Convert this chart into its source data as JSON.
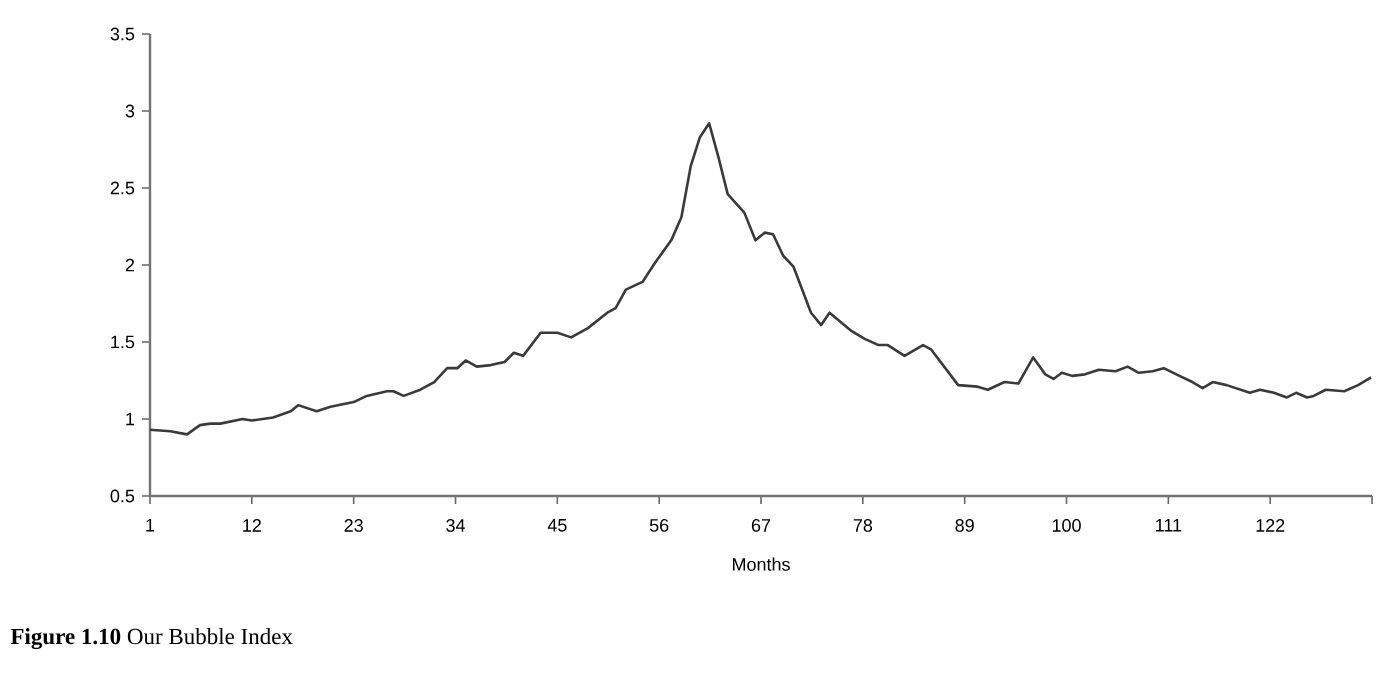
{
  "chart_data": {
    "type": "line",
    "title": "**Figure 1.10** Our Bubble Index",
    "xlabel": "Months",
    "xlim": [
      1,
      133
    ],
    "xticks": [
      1,
      12,
      23,
      34,
      45,
      56,
      67,
      78,
      89,
      100,
      111,
      122,
      {
        "value": 133,
        "label": null
      }
    ],
    "ylim": [
      0.5,
      3.5
    ],
    "yticks": [
      0.5,
      1,
      1.5,
      2,
      2.5,
      3,
      3.5
    ],
    "grid": false,
    "marker": "none",
    "line_style": "solid",
    "x": [
      1,
      3.2,
      5,
      6.4,
      7.5,
      8.6,
      11,
      12,
      14.3,
      16.2,
      17,
      19,
      20.5,
      23,
      24.4,
      26.6,
      27.3,
      28.4,
      30.2,
      31.7,
      33.1,
      34.2,
      35.1,
      36.3,
      37.8,
      39.3,
      40.3,
      41.3,
      43.2,
      45,
      46.5,
      48.3,
      50.4,
      51.3,
      52.4,
      54.2,
      55.5,
      57.3,
      58.4,
      59.4,
      60.4,
      61.4,
      62.4,
      63.4,
      65.2,
      66.4,
      67.4,
      68.3,
      69.4,
      70.5,
      72.4,
      73.5,
      74.4,
      76.8,
      78.2,
      79.7,
      80.7,
      82.5,
      84.5,
      85.4,
      88.3,
      90.4,
      91.5,
      93.3,
      94.8,
      96.4,
      97.7,
      98.6,
      99.5,
      100.6,
      102,
      103.5,
      105.3,
      106.6,
      107.8,
      109.3,
      110.5,
      112.2,
      113.6,
      114.7,
      115.8,
      117.3,
      119.8,
      120.9,
      122.4,
      123.8,
      124.8,
      126,
      126.7,
      128,
      130,
      131.5,
      132.9
    ],
    "series": [
      {
        "color": "#3a3a3a",
        "values": [
          0.93,
          0.92,
          0.9,
          0.96,
          0.97,
          0.97,
          1.0,
          0.99,
          1.01,
          1.05,
          1.09,
          1.05,
          1.08,
          1.11,
          1.15,
          1.18,
          1.18,
          1.15,
          1.19,
          1.24,
          1.33,
          1.33,
          1.38,
          1.34,
          1.35,
          1.37,
          1.43,
          1.41,
          1.56,
          1.56,
          1.53,
          1.59,
          1.69,
          1.72,
          1.84,
          1.89,
          2.01,
          2.16,
          2.31,
          2.64,
          2.83,
          2.92,
          2.7,
          2.46,
          2.34,
          2.16,
          2.21,
          2.2,
          2.06,
          1.99,
          1.69,
          1.61,
          1.69,
          1.57,
          1.52,
          1.48,
          1.48,
          1.41,
          1.48,
          1.45,
          1.22,
          1.21,
          1.19,
          1.24,
          1.23,
          1.4,
          1.29,
          1.26,
          1.3,
          1.28,
          1.29,
          1.32,
          1.31,
          1.34,
          1.3,
          1.31,
          1.33,
          1.28,
          1.24,
          1.2,
          1.24,
          1.22,
          1.17,
          1.19,
          1.17,
          1.14,
          1.17,
          1.14,
          1.15,
          1.19,
          1.18,
          1.22,
          1.27
        ]
      }
    ]
  }
}
